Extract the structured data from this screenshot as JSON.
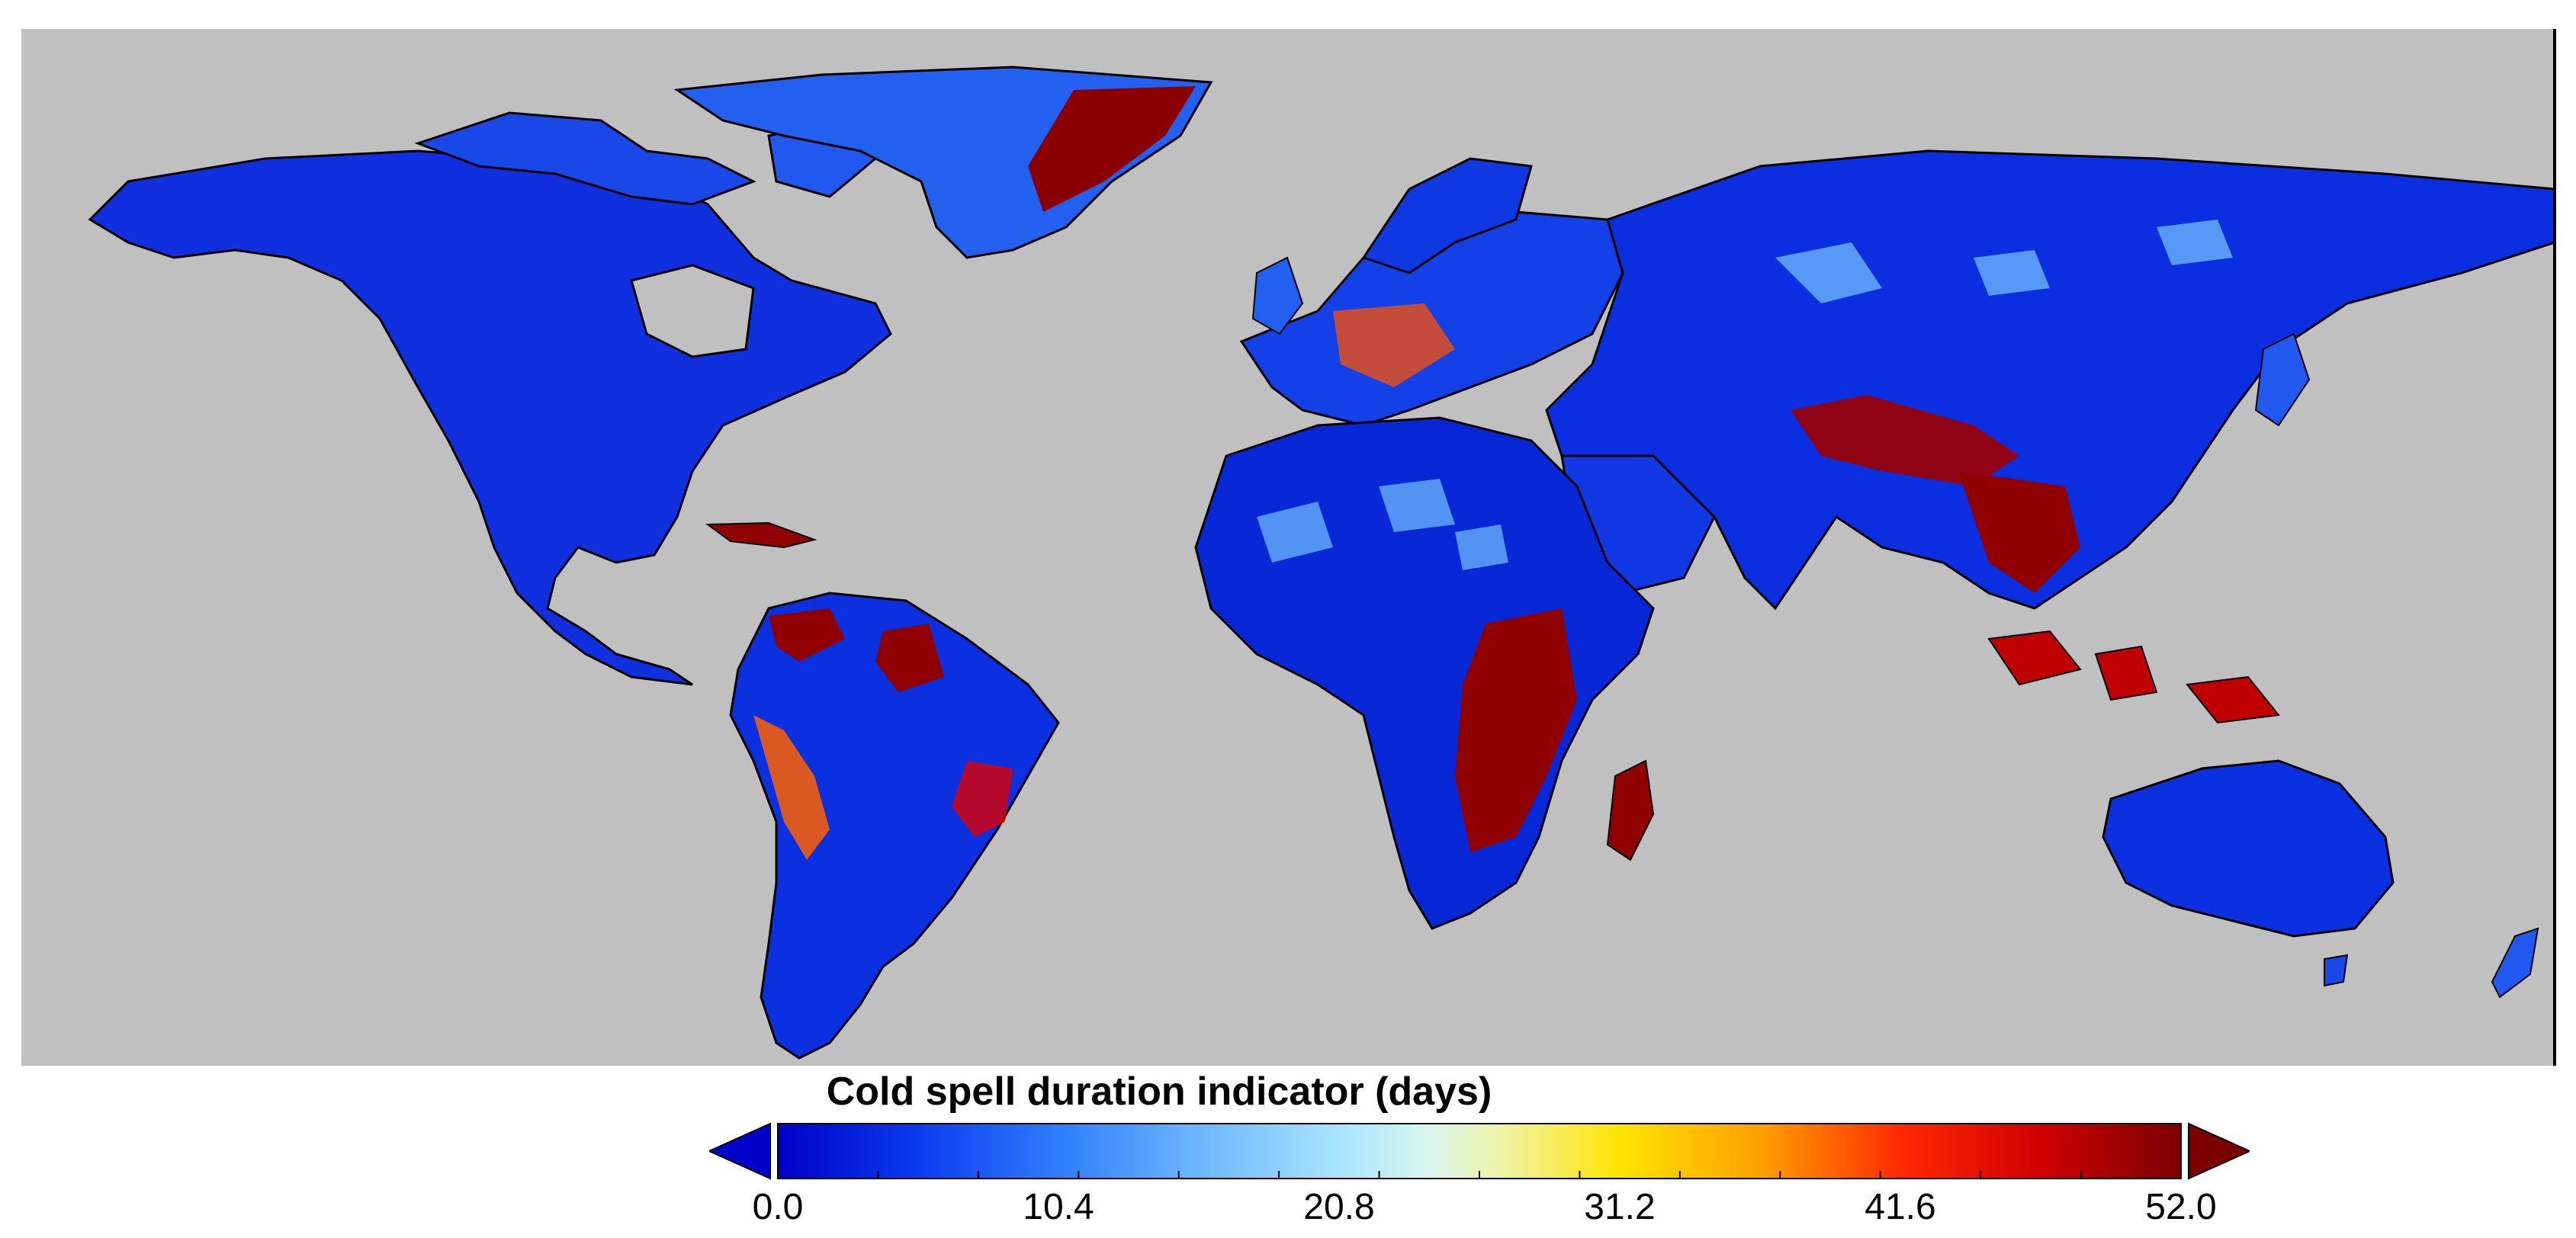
{
  "colorbar": {
    "title": "Cold spell duration indicator (days)",
    "min": 0.0,
    "max": 52.0,
    "tick_labels": [
      "0.0",
      "10.4",
      "20.8",
      "31.2",
      "41.6",
      "52.0"
    ],
    "tick_values": [
      0.0,
      10.4,
      20.8,
      31.2,
      41.6,
      52.0
    ],
    "minor_tick_step": 3.7143,
    "extend": "both",
    "colormap_stops": [
      {
        "value": 0.0,
        "color": "#0000c8"
      },
      {
        "value": 5.2,
        "color": "#0a3cf0"
      },
      {
        "value": 10.4,
        "color": "#2f7dfc"
      },
      {
        "value": 15.6,
        "color": "#6cb7fc"
      },
      {
        "value": 20.8,
        "color": "#a8e4fc"
      },
      {
        "value": 24.0,
        "color": "#d8f6f0"
      },
      {
        "value": 27.0,
        "color": "#f0f3a0"
      },
      {
        "value": 31.2,
        "color": "#ffe400"
      },
      {
        "value": 36.4,
        "color": "#ffa000"
      },
      {
        "value": 41.6,
        "color": "#ff2a00"
      },
      {
        "value": 46.8,
        "color": "#d00000"
      },
      {
        "value": 52.0,
        "color": "#7a0000"
      }
    ],
    "under_color": "#0000c8",
    "over_color": "#7a0000"
  },
  "map": {
    "background_color": "#c0c0c0",
    "coastline_color": "#000000",
    "projection": "equirectangular"
  }
}
